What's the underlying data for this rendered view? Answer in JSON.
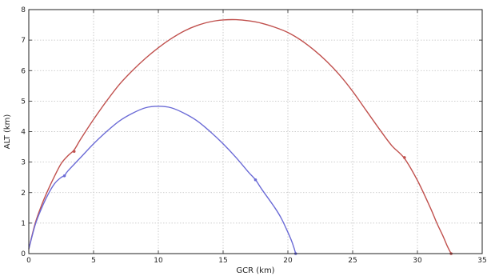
{
  "chart_data": {
    "type": "line",
    "title": "",
    "xlabel": "GCR (km)",
    "ylabel": "ALT (km)",
    "xlim": [
      0,
      35
    ],
    "ylim": [
      0,
      8
    ],
    "xticks": [
      0,
      5,
      10,
      15,
      20,
      25,
      30,
      35
    ],
    "yticks": [
      0,
      1,
      2,
      3,
      4,
      5,
      6,
      7,
      8
    ],
    "grid": true,
    "series": [
      {
        "color": "#c0504d",
        "x": [
          0,
          0.5,
          1.0,
          1.5,
          2.0,
          2.5,
          3.0,
          3.5,
          4.0,
          5.0,
          6.0,
          7.0,
          8.0,
          9.0,
          10.0,
          11.0,
          12.0,
          13.0,
          14.0,
          15.0,
          16.0,
          17.0,
          18.0,
          19.0,
          20.0,
          21.0,
          22.0,
          23.0,
          24.0,
          25.0,
          26.0,
          27.0,
          28.0,
          29.0,
          30.0,
          31.0,
          31.5,
          32.0,
          32.3,
          32.6
        ],
        "y": [
          0.15,
          1.0,
          1.6,
          2.1,
          2.55,
          2.95,
          3.2,
          3.4,
          3.75,
          4.4,
          5.0,
          5.55,
          6.0,
          6.4,
          6.75,
          7.05,
          7.3,
          7.48,
          7.6,
          7.66,
          7.67,
          7.63,
          7.55,
          7.42,
          7.25,
          7.0,
          6.68,
          6.3,
          5.85,
          5.32,
          4.72,
          4.12,
          3.55,
          3.12,
          2.4,
          1.5,
          1.0,
          0.55,
          0.25,
          0.0
        ],
        "markers": [
          {
            "x": 3.5,
            "y": 3.35
          },
          {
            "x": 29.0,
            "y": 3.15
          },
          {
            "x": 32.6,
            "y": 0.0
          }
        ]
      },
      {
        "color": "#6b6bd6",
        "x": [
          0,
          0.5,
          1.0,
          1.5,
          2.0,
          2.5,
          2.75,
          3.0,
          4.0,
          5.0,
          6.0,
          7.0,
          8.0,
          9.0,
          10.0,
          11.0,
          12.0,
          13.0,
          14.0,
          15.0,
          16.0,
          17.0,
          17.5,
          18.0,
          19.0,
          19.5,
          20.0,
          20.3,
          20.5,
          20.6
        ],
        "y": [
          0.15,
          0.95,
          1.5,
          1.95,
          2.3,
          2.5,
          2.55,
          2.7,
          3.15,
          3.6,
          4.0,
          4.35,
          4.6,
          4.78,
          4.83,
          4.78,
          4.6,
          4.35,
          4.0,
          3.6,
          3.15,
          2.65,
          2.42,
          2.1,
          1.5,
          1.15,
          0.7,
          0.4,
          0.15,
          0.0
        ],
        "markers": [
          {
            "x": 2.75,
            "y": 2.55
          },
          {
            "x": 17.5,
            "y": 2.42
          },
          {
            "x": 20.6,
            "y": 0.0
          }
        ]
      }
    ]
  }
}
